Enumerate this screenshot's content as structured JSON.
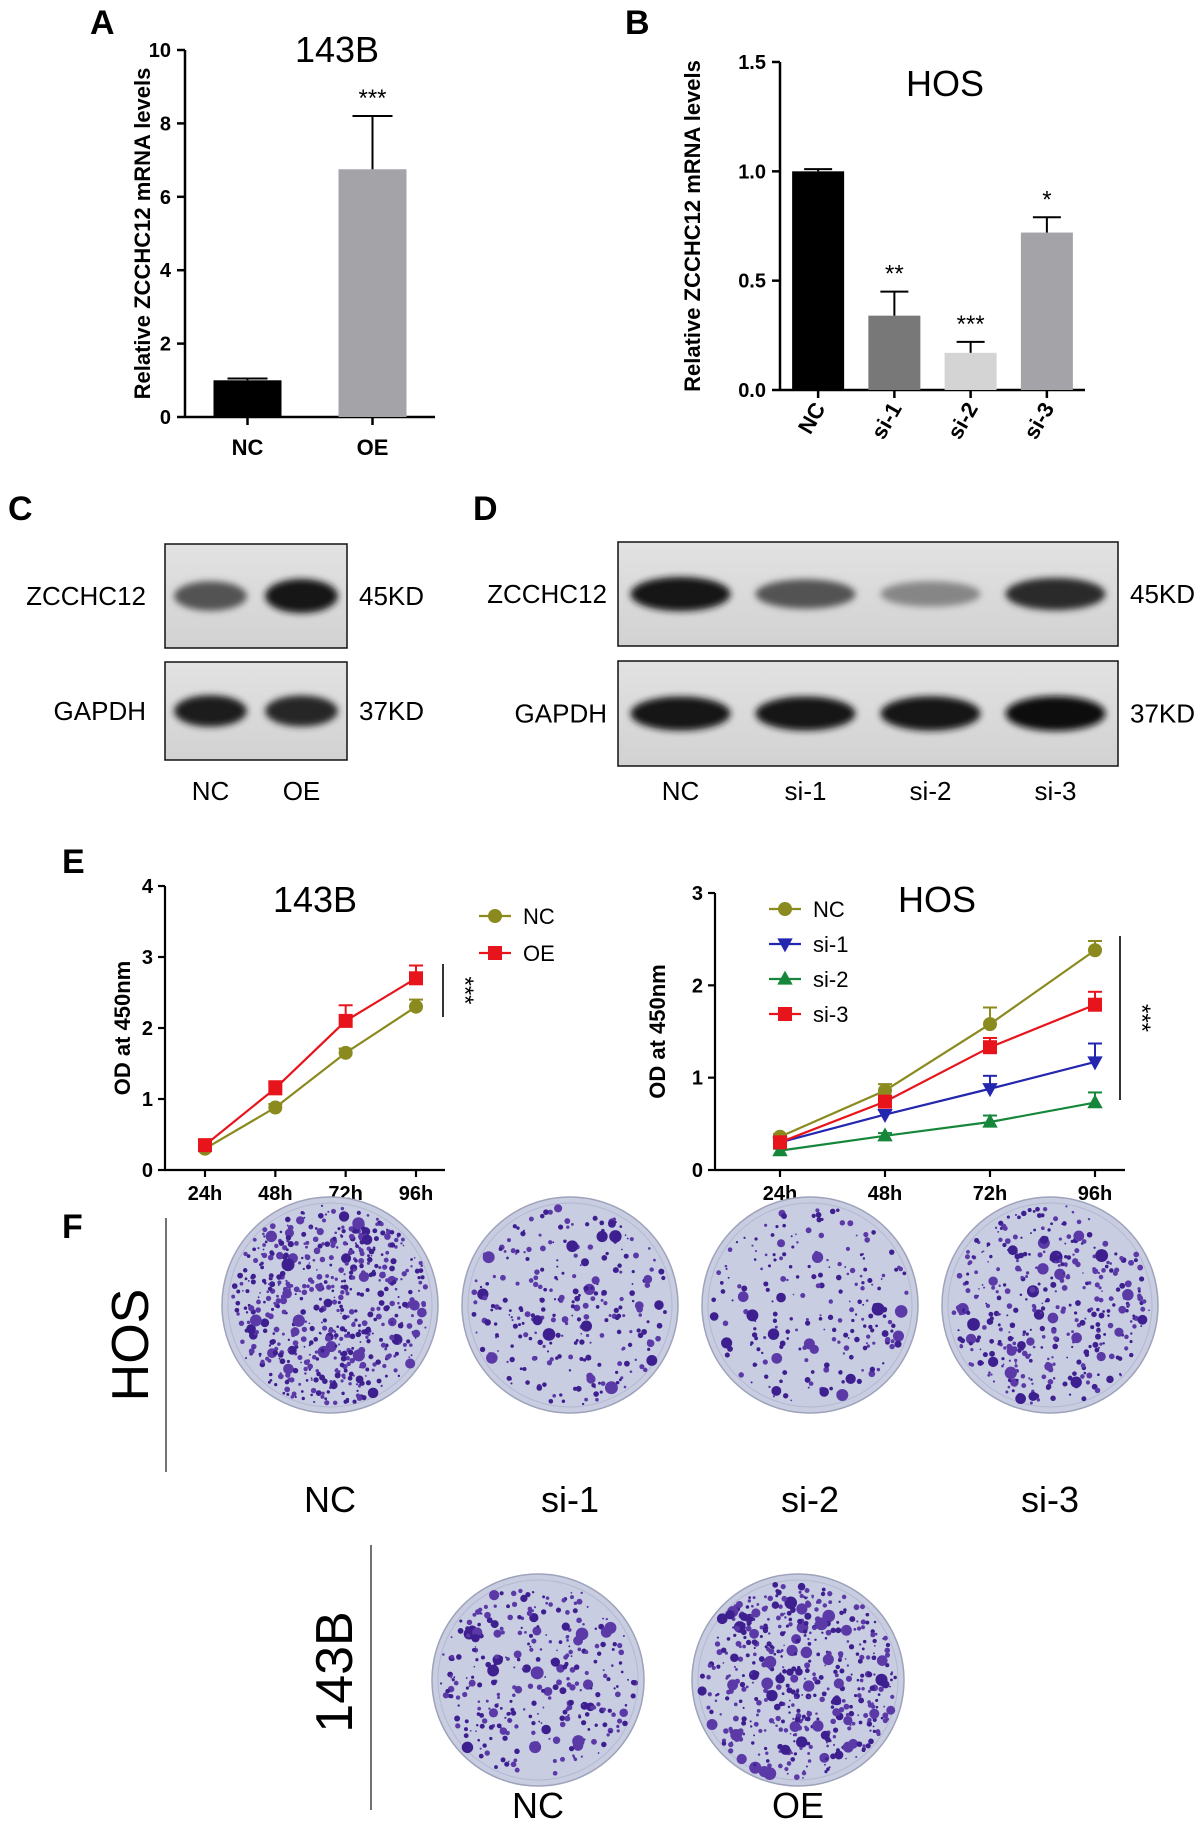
{
  "panels": {
    "A": "A",
    "B": "B",
    "C": "C",
    "D": "D",
    "E": "E",
    "F": "F"
  },
  "chart_data": [
    {
      "panel": "A",
      "type": "bar",
      "title": "143B",
      "ylabel": "Relative  ZCCHC12 mRNA levels",
      "categories": [
        "NC",
        "OE"
      ],
      "values": [
        1.0,
        6.75
      ],
      "errors": [
        0.05,
        1.45
      ],
      "significance": [
        "",
        "***"
      ],
      "colors": [
        "#000000",
        "#a3a3a8"
      ],
      "ylim": [
        0,
        10
      ],
      "yticks": [
        "0",
        "2",
        "4",
        "6",
        "8",
        "10"
      ]
    },
    {
      "panel": "B",
      "type": "bar",
      "title": "HOS",
      "ylabel": "Relative  ZCCHC12 mRNA levels",
      "categories": [
        "NC",
        "si-1",
        "si-2",
        "si-3"
      ],
      "values": [
        1.0,
        0.34,
        0.17,
        0.72
      ],
      "errors": [
        0.01,
        0.11,
        0.05,
        0.07
      ],
      "significance": [
        "",
        "**",
        "***",
        "*"
      ],
      "colors": [
        "#000000",
        "#787878",
        "#d4d4d4",
        "#a3a3a8"
      ],
      "ylim": [
        0,
        1.5
      ],
      "yticks": [
        "0.0",
        "0.5",
        "1.0",
        "1.5"
      ]
    },
    {
      "panel": "E-left",
      "type": "line",
      "title": "143B",
      "ylabel": "OD at 450nm",
      "x": [
        "24h",
        "48h",
        "72h",
        "96h"
      ],
      "ylim": [
        0,
        4
      ],
      "yticks": [
        "0",
        "1",
        "2",
        "3",
        "4"
      ],
      "significance": "***",
      "series": [
        {
          "name": "NC",
          "values": [
            0.3,
            0.88,
            1.65,
            2.3
          ],
          "errors": [
            0.03,
            0.05,
            0.06,
            0.1
          ],
          "color": "#8a8a1e",
          "marker": "circle"
        },
        {
          "name": "OE",
          "values": [
            0.35,
            1.15,
            2.1,
            2.7
          ],
          "errors": [
            0.03,
            0.1,
            0.22,
            0.18
          ],
          "color": "#e8141c",
          "marker": "square"
        }
      ]
    },
    {
      "panel": "E-right",
      "type": "line",
      "title": "HOS",
      "ylabel": "OD at 450nm",
      "x": [
        "24h",
        "48h",
        "72h",
        "96h"
      ],
      "ylim": [
        0,
        3
      ],
      "yticks": [
        "0",
        "1",
        "2",
        "3"
      ],
      "significance": "***",
      "series": [
        {
          "name": "NC",
          "values": [
            0.36,
            0.86,
            1.58,
            2.38
          ],
          "errors": [
            0.03,
            0.07,
            0.18,
            0.1
          ],
          "color": "#8a8a1e",
          "marker": "circle"
        },
        {
          "name": "si-1",
          "values": [
            0.3,
            0.6,
            0.88,
            1.17
          ],
          "errors": [
            0.03,
            0.05,
            0.14,
            0.2
          ],
          "color": "#2327b0",
          "marker": "triangle-down"
        },
        {
          "name": "si-2",
          "values": [
            0.21,
            0.37,
            0.52,
            0.73
          ],
          "errors": [
            0.02,
            0.03,
            0.07,
            0.11
          ],
          "color": "#16873a",
          "marker": "triangle-up"
        },
        {
          "name": "si-3",
          "values": [
            0.3,
            0.74,
            1.33,
            1.79
          ],
          "errors": [
            0.03,
            0.06,
            0.1,
            0.14
          ],
          "color": "#e8141c",
          "marker": "square"
        }
      ]
    }
  ],
  "westerns": {
    "C": {
      "rows": [
        {
          "protein": "ZCCHC12",
          "size": "45KD",
          "intensity": [
            0.62,
            0.95
          ]
        },
        {
          "protein": "GAPDH",
          "size": "37KD",
          "intensity": [
            0.9,
            0.86
          ]
        }
      ],
      "lanes": [
        "NC",
        "OE"
      ]
    },
    "D": {
      "rows": [
        {
          "protein": "ZCCHC12",
          "size": "45KD",
          "intensity": [
            0.95,
            0.62,
            0.35,
            0.82
          ]
        },
        {
          "protein": "GAPDH",
          "size": "37KD",
          "intensity": [
            0.92,
            0.92,
            0.94,
            0.98
          ]
        }
      ],
      "lanes": [
        "NC",
        "si-1",
        "si-2",
        "si-3"
      ]
    }
  },
  "colony": {
    "hos": {
      "label": "HOS",
      "plates": [
        "NC",
        "si-1",
        "si-2",
        "si-3"
      ],
      "density": [
        1.0,
        0.35,
        0.25,
        0.6
      ]
    },
    "b143": {
      "label": "143B",
      "plates": [
        "NC",
        "OE"
      ],
      "density": [
        0.45,
        0.85
      ]
    }
  }
}
